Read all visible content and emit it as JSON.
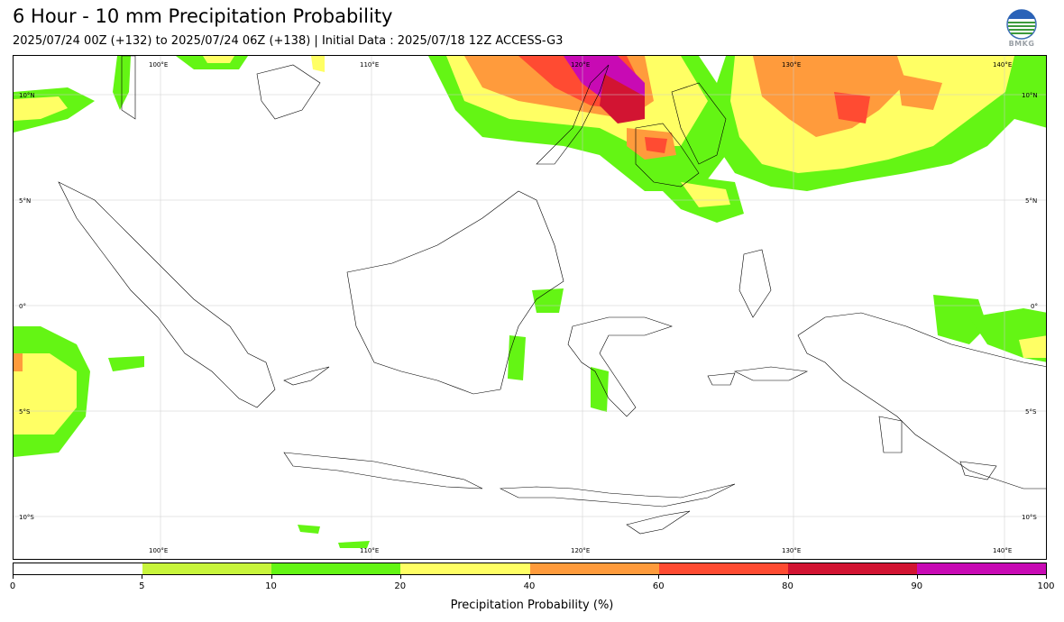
{
  "header": {
    "title": "6 Hour - 10 mm Precipitation Probability",
    "subtitle": "2025/07/24 00Z (+132) to 2025/07/24 06Z (+138) | Initial Data : 2025/07/18 12Z ACCESS-G3",
    "logo_text": "BMKG"
  },
  "map": {
    "lon_labels_top": [
      "100°E",
      "110°E",
      "120°E",
      "130°E",
      "140°E"
    ],
    "lon_labels_bottom": [
      "100°E",
      "110°E",
      "120°E",
      "130°E",
      "140°E"
    ],
    "lat_labels_left": [
      "10°N",
      "5°N",
      "0°",
      "5°S",
      "10°S"
    ],
    "lat_labels_right": [
      "10°N",
      "5°N",
      "0°",
      "5°S",
      "10°S"
    ],
    "lon_range": [
      93,
      142
    ],
    "lat_range": [
      -12,
      12
    ]
  },
  "colorbar": {
    "label": "Precipitation Probability (%)",
    "ticks": [
      "0",
      "5",
      "10",
      "20",
      "40",
      "60",
      "80",
      "90",
      "100"
    ],
    "colors": [
      "#ffffff",
      "#c8f53c",
      "#64f514",
      "#ffff64",
      "#ff9b3c",
      "#ff4b32",
      "#d21432",
      "#c80ab4"
    ]
  }
}
